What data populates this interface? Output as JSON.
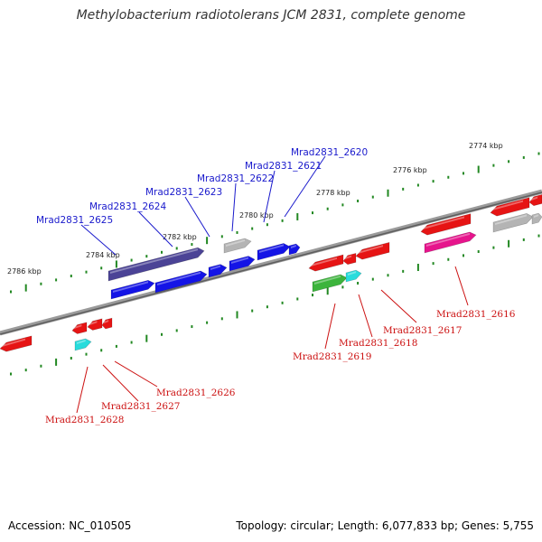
{
  "title": "Methylobacterium radiotolerans JCM 2831, complete genome",
  "accession": "Accession: NC_010505",
  "topology": "Topology: circular; Length: 6,077,833 bp; Genes: 5,755",
  "scale_labels": [
    "2774 kbp",
    "2776 kbp",
    "2778 kbp",
    "2780 kbp",
    "2782 kbp",
    "2784 kbp",
    "2786 kbp"
  ],
  "top_labels": [
    "Mrad2831_2620",
    "Mrad2831_2621",
    "Mrad2831_2622",
    "Mrad2831_2623",
    "Mrad2831_2624",
    "Mrad2831_2625"
  ],
  "bottom_labels": [
    "Mrad2831_2616",
    "Mrad2831_2617",
    "Mrad2831_2618",
    "Mrad2831_2619",
    "Mrad2831_2626",
    "Mrad2831_2627",
    "Mrad2831_2628"
  ],
  "colors": {
    "forward_label": "#1a1acc",
    "reverse_label": "#cc1111",
    "backbone": "#777777",
    "tick": "#228822",
    "gene_blue": "#1414e6",
    "gene_navy": "#4b4396",
    "gene_grey": "#b4b4b4",
    "gene_red": "#e61414",
    "gene_magenta": "#e6148c",
    "gene_green": "#3cb43c",
    "gene_cyan": "#28dcdc"
  }
}
